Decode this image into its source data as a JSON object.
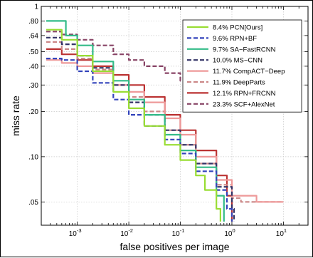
{
  "chart_data": {
    "type": "line",
    "title": "",
    "xlabel": "false positives per image",
    "ylabel": "miss rate",
    "xscale": "log",
    "yscale": "log",
    "xlim": [
      0.0002,
      30
    ],
    "ylim": [
      0.035,
      1
    ],
    "x_ticks": [
      {
        "value": 0.001,
        "label": "10",
        "exp": "-3"
      },
      {
        "value": 0.01,
        "label": "10",
        "exp": "-2"
      },
      {
        "value": 0.1,
        "label": "10",
        "exp": "-1"
      },
      {
        "value": 1,
        "label": "10",
        "exp": "0"
      },
      {
        "value": 10,
        "label": "10",
        "exp": "1"
      }
    ],
    "y_ticks": [
      {
        "value": 0.05,
        "label": ".05"
      },
      {
        "value": 0.1,
        "label": ".10"
      },
      {
        "value": 0.2,
        "label": ".20"
      },
      {
        "value": 0.3,
        "label": ".30"
      },
      {
        "value": 0.4,
        "label": ".40"
      },
      {
        "value": 0.5,
        "label": ".50"
      },
      {
        "value": 0.64,
        "label": ".64"
      },
      {
        "value": 0.8,
        "label": ".80"
      },
      {
        "value": 1,
        "label": "1"
      }
    ],
    "grid": true,
    "legend_position": "top-right",
    "series": [
      {
        "name": "8.4% PCN[Ours]",
        "color": "#99dd33",
        "dash": "solid",
        "points": [
          [
            0.00025,
            0.7
          ],
          [
            0.0005,
            0.6
          ],
          [
            0.001,
            0.47
          ],
          [
            0.002,
            0.37
          ],
          [
            0.005,
            0.27
          ],
          [
            0.01,
            0.21
          ],
          [
            0.02,
            0.16
          ],
          [
            0.05,
            0.12
          ],
          [
            0.1,
            0.095
          ],
          [
            0.2,
            0.075
          ],
          [
            0.3,
            0.06
          ],
          [
            0.5,
            0.045
          ],
          [
            0.6,
            0.037
          ]
        ]
      },
      {
        "name": "9.6% RPN+BF",
        "color": "#3344bb",
        "dash": "dashed",
        "points": [
          [
            0.00025,
            0.45
          ],
          [
            0.0005,
            0.44
          ],
          [
            0.001,
            0.37
          ],
          [
            0.002,
            0.31
          ],
          [
            0.005,
            0.24
          ],
          [
            0.01,
            0.19
          ],
          [
            0.02,
            0.16
          ],
          [
            0.05,
            0.13
          ],
          [
            0.1,
            0.105
          ],
          [
            0.2,
            0.08
          ],
          [
            0.5,
            0.06
          ],
          [
            0.8,
            0.045
          ],
          [
            1.0,
            0.037
          ]
        ]
      },
      {
        "name": "9.7% SA−FastRCNN",
        "color": "#33bb88",
        "dash": "solid",
        "points": [
          [
            0.00025,
            0.8
          ],
          [
            0.0006,
            0.8
          ],
          [
            0.0006,
            0.64
          ],
          [
            0.001,
            0.55
          ],
          [
            0.002,
            0.43
          ],
          [
            0.005,
            0.32
          ],
          [
            0.01,
            0.24
          ],
          [
            0.02,
            0.19
          ],
          [
            0.05,
            0.14
          ],
          [
            0.1,
            0.11
          ],
          [
            0.2,
            0.085
          ],
          [
            0.5,
            0.055
          ],
          [
            0.7,
            0.037
          ]
        ]
      },
      {
        "name": "10.0% MS−CNN",
        "color": "#333366",
        "dash": "dashed",
        "points": [
          [
            0.00025,
            0.62
          ],
          [
            0.0005,
            0.56
          ],
          [
            0.001,
            0.47
          ],
          [
            0.002,
            0.39
          ],
          [
            0.005,
            0.3
          ],
          [
            0.01,
            0.23
          ],
          [
            0.02,
            0.19
          ],
          [
            0.05,
            0.15
          ],
          [
            0.1,
            0.12
          ],
          [
            0.2,
            0.09
          ],
          [
            0.5,
            0.063
          ],
          [
            1.0,
            0.045
          ],
          [
            1.1,
            0.037
          ]
        ]
      },
      {
        "name": "11.7% CompACT−Deep",
        "color": "#ee9999",
        "dash": "solid",
        "points": [
          [
            0.00025,
            0.44
          ],
          [
            0.0005,
            0.42
          ],
          [
            0.001,
            0.4
          ],
          [
            0.002,
            0.36
          ],
          [
            0.005,
            0.3
          ],
          [
            0.01,
            0.27
          ],
          [
            0.02,
            0.23
          ],
          [
            0.05,
            0.18
          ],
          [
            0.1,
            0.14
          ],
          [
            0.2,
            0.1
          ],
          [
            0.5,
            0.07
          ],
          [
            1.0,
            0.055
          ],
          [
            3.0,
            0.05
          ],
          [
            10,
            0.05
          ]
        ]
      },
      {
        "name": "11.9% DeepParts",
        "color": "#cc8888",
        "dash": "dashed",
        "points": [
          [
            0.00025,
            0.58
          ],
          [
            0.0005,
            0.52
          ],
          [
            0.001,
            0.45
          ],
          [
            0.002,
            0.38
          ],
          [
            0.005,
            0.3
          ],
          [
            0.01,
            0.25
          ],
          [
            0.02,
            0.2
          ],
          [
            0.05,
            0.15
          ],
          [
            0.1,
            0.12
          ],
          [
            0.2,
            0.09
          ],
          [
            0.5,
            0.065
          ],
          [
            1.0,
            0.053
          ],
          [
            1.5,
            0.05
          ],
          [
            10,
            0.05
          ]
        ]
      },
      {
        "name": "12.1% RPN+FRCNN",
        "color": "#bb3333",
        "dash": "solid",
        "points": [
          [
            0.00025,
            0.52
          ],
          [
            0.0005,
            0.48
          ],
          [
            0.001,
            0.44
          ],
          [
            0.002,
            0.4
          ],
          [
            0.005,
            0.35
          ],
          [
            0.01,
            0.3
          ],
          [
            0.02,
            0.25
          ],
          [
            0.05,
            0.19
          ],
          [
            0.1,
            0.15
          ],
          [
            0.2,
            0.11
          ],
          [
            0.5,
            0.075
          ],
          [
            0.8,
            0.055
          ],
          [
            1.0,
            0.037
          ]
        ]
      },
      {
        "name": "23.3% SCF+AlexNet",
        "color": "#884466",
        "dash": "dashed",
        "points": [
          [
            0.00025,
            0.68
          ],
          [
            0.0005,
            0.65
          ],
          [
            0.001,
            0.6
          ],
          [
            0.002,
            0.55
          ],
          [
            0.005,
            0.48
          ],
          [
            0.01,
            0.44
          ],
          [
            0.02,
            0.4
          ],
          [
            0.05,
            0.36
          ],
          [
            0.1,
            0.32
          ],
          [
            0.2,
            0.29
          ],
          [
            0.5,
            0.26
          ],
          [
            1.0,
            0.24
          ],
          [
            2.0,
            0.23
          ]
        ]
      }
    ]
  }
}
